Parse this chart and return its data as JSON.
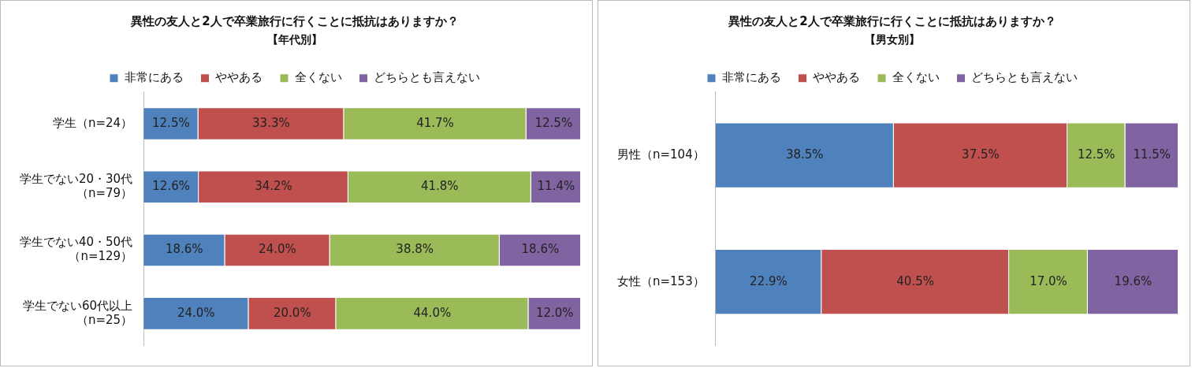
{
  "chart_data": [
    {
      "type": "bar",
      "orientation": "horizontal",
      "stacked": true,
      "title": "異性の友人と2人で卒業旅行に行くことに抵抗はありますか？",
      "subtitle": "【年代別】",
      "categories": [
        "学生（n=24）",
        "学生でない20・30代（n=79）",
        "学生でない40・50代（n=129）",
        "学生でない60代以上（n=25）"
      ],
      "series": [
        {
          "name": "非常にある",
          "color": "#4f81bd",
          "values": [
            12.5,
            12.6,
            18.6,
            24.0
          ],
          "value_labels": [
            "12.5%",
            "12.6%",
            "18.6%",
            "24.0%"
          ]
        },
        {
          "name": "ややある",
          "color": "#c0504d",
          "values": [
            33.3,
            34.2,
            24.0,
            20.0
          ],
          "value_labels": [
            "33.3%",
            "34.2%",
            "24.0%",
            "20.0%"
          ]
        },
        {
          "name": "全くない",
          "color": "#9bbb59",
          "values": [
            41.7,
            41.8,
            38.8,
            44.0
          ],
          "value_labels": [
            "41.7%",
            "41.8%",
            "38.8%",
            "44.0%"
          ]
        },
        {
          "name": "どちらとも言えない",
          "color": "#8064a2",
          "values": [
            12.5,
            11.4,
            18.6,
            12.0
          ],
          "value_labels": [
            "12.5%",
            "11.4%",
            "18.6%",
            "12.0%"
          ]
        }
      ],
      "legend": "top"
    },
    {
      "type": "bar",
      "orientation": "horizontal",
      "stacked": true,
      "title": "異性の友人と2人で卒業旅行に行くことに抵抗はありますか？",
      "subtitle": "【男女別】",
      "categories": [
        "男性（n=104）",
        "女性（n=153）"
      ],
      "series": [
        {
          "name": "非常にある",
          "color": "#4f81bd",
          "values": [
            38.5,
            22.9
          ],
          "value_labels": [
            "38.5%",
            "22.9%"
          ]
        },
        {
          "name": "ややある",
          "color": "#c0504d",
          "values": [
            37.5,
            40.5
          ],
          "value_labels": [
            "37.5%",
            "40.5%"
          ]
        },
        {
          "name": "全くない",
          "color": "#9bbb59",
          "values": [
            12.5,
            17.0
          ],
          "value_labels": [
            "12.5%",
            "17.0%"
          ]
        },
        {
          "name": "どちらとも言えない",
          "color": "#8064a2",
          "values": [
            11.5,
            19.6
          ],
          "value_labels": [
            "11.5%",
            "19.6%"
          ]
        }
      ],
      "legend": "top"
    }
  ]
}
